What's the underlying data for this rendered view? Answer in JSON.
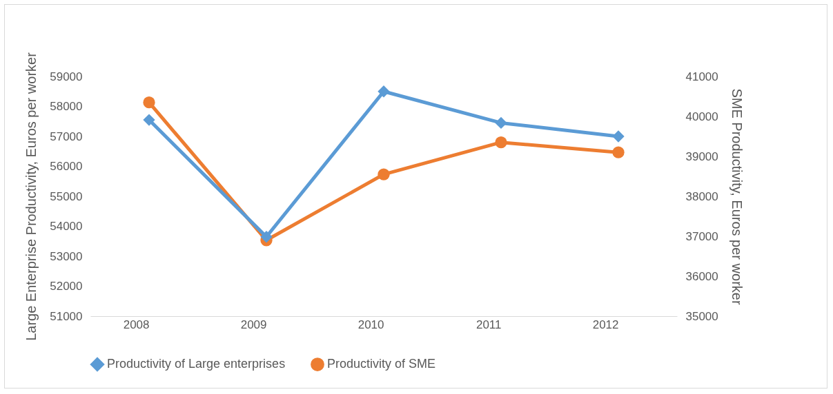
{
  "chart_data": {
    "type": "line",
    "categories": [
      "2008",
      "2009",
      "2010",
      "2011",
      "2012"
    ],
    "ylabel": "Large Enterprise Productivity, Euros per worker",
    "y2label": "SME Productivity, Euros per worker",
    "ylim": [
      51000,
      59000
    ],
    "yticks": [
      51000,
      52000,
      53000,
      54000,
      55000,
      56000,
      57000,
      58000,
      59000
    ],
    "y2lim": [
      35000,
      41000
    ],
    "y2ticks": [
      35000,
      36000,
      37000,
      38000,
      39000,
      40000,
      41000
    ],
    "series": [
      {
        "name": "Productivity of Large enterprises",
        "color": "#5b9bd5",
        "marker": "diamond",
        "values": [
          57550,
          53650,
          58500,
          57450,
          57000
        ]
      },
      {
        "name": "Productivity of SME",
        "color": "#ed7d31",
        "marker": "circle",
        "axis": "y2",
        "values": [
          40350,
          36900,
          38550,
          39350,
          39100
        ]
      }
    ],
    "legend": "bottom",
    "grid": false
  }
}
